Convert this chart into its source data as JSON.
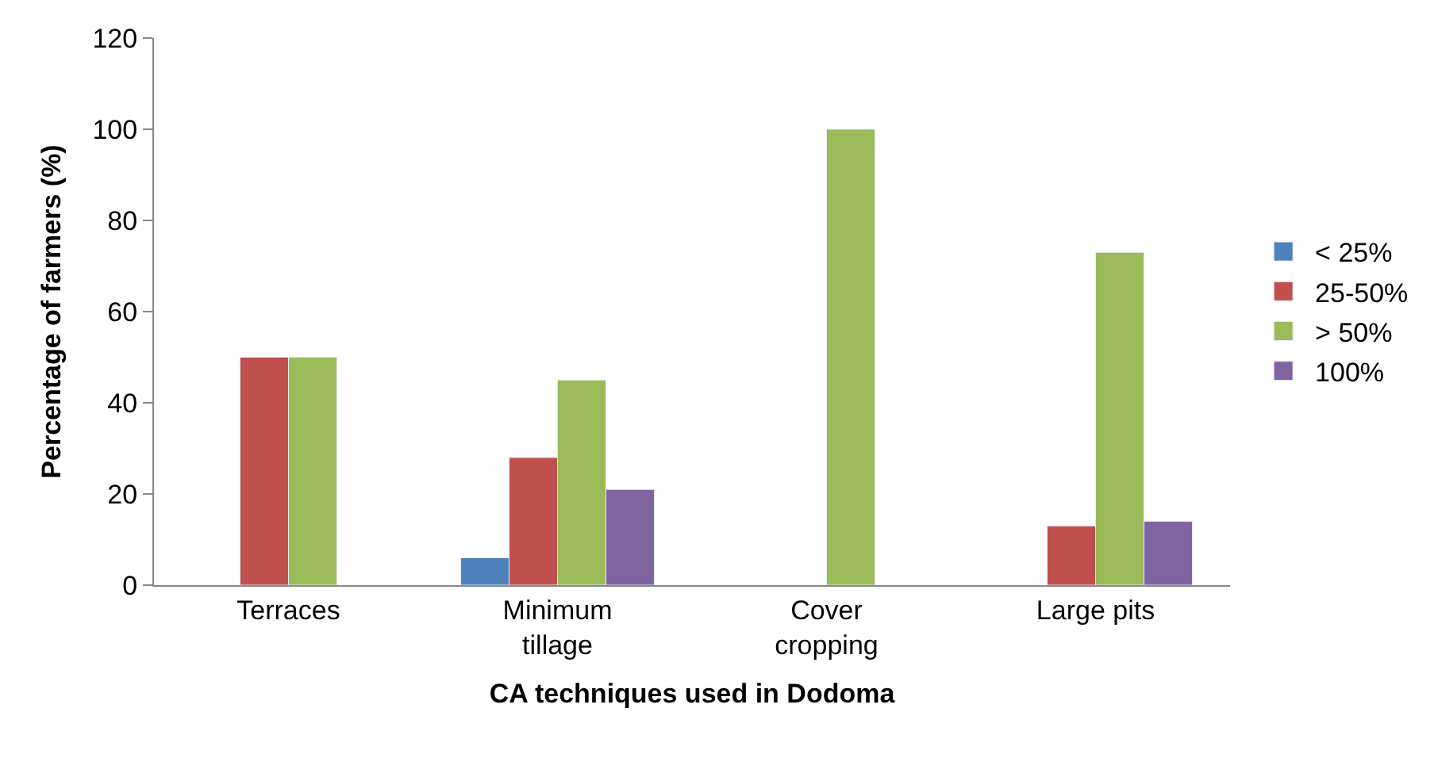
{
  "chart_data": {
    "type": "bar",
    "xlabel": "CA techniques used in Dodoma",
    "ylabel": "Percentage of farmers (%)",
    "categories": [
      "Terraces",
      "Minimum\ntillage",
      "Cover\ncropping",
      "Large pits"
    ],
    "series": [
      {
        "name": "< 25%",
        "color": "#4f81bd",
        "values": [
          null,
          6,
          null,
          null
        ]
      },
      {
        "name": "25-50%",
        "color": "#c0504d",
        "values": [
          50,
          28,
          null,
          13
        ]
      },
      {
        "name": "> 50%",
        "color": "#9bbb59",
        "values": [
          50,
          45,
          100,
          73
        ]
      },
      {
        "name": "100%",
        "color": "#8064a2",
        "values": [
          null,
          21,
          null,
          14
        ]
      }
    ],
    "ylim": [
      0,
      120
    ],
    "yticks": [
      0,
      20,
      40,
      60,
      80,
      100,
      120
    ],
    "grid": false,
    "legend": "right"
  }
}
